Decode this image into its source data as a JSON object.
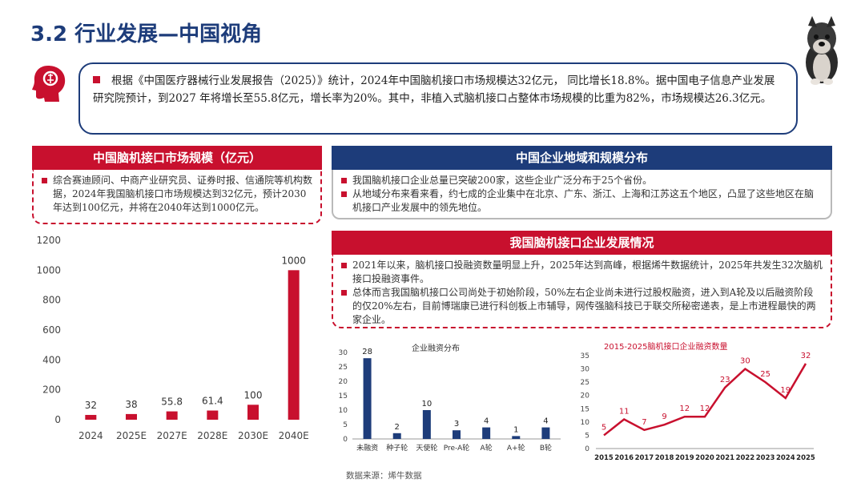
{
  "page": {
    "title": "3.2 行业发展—中国视角",
    "summary": "根据《中国医疗器械行业发展报告（2025）》统计，2024年中国脑机接口市场规模达32亿元， 同比增长18.8%。据中国电子信息产业发展研究院预计，到2027 年将增长至55.8亿元，增长率为20%。其中，非植入式脑机接口占整体市场规模的比重为82%，市场规模达26.3亿元。"
  },
  "sections": {
    "market_size": {
      "title": "中国脑机接口市场规模（亿元）",
      "items": [
        "综合赛迪顾问、中商产业研究员、证券时报、信通院等机构数据，2024年我国脑机接口市场规模达到32亿元，预计2030年达到100亿元，并将在2040年达到1000亿元。"
      ]
    },
    "region": {
      "title": "中国企业地域和规模分布",
      "items": [
        "我国脑机接口企业总量已突破200家，这些企业广泛分布于25个省份。",
        "从地域分布来看来看，约七成的企业集中在北京、广东、浙江、上海和江苏这五个地区，凸显了这些地区在脑机接口产业发展中的领先地位。"
      ]
    },
    "development": {
      "title": "我国脑机接口企业发展情况",
      "items": [
        "2021年以来，脑机接口投融资数量明显上升，2025年达到高峰，根据烯牛数据统计，2025年共发生32次脑机接口投融资事件。",
        "总体而言我国脑机接口公司尚处于初始阶段，50%左右企业尚未进行过股权融资，进入到A轮及以后融资阶段的仅20%左右，目前博瑞康已进行科创板上市辅导，网传强脑科技已于联交所秘密递表，是上市进程最快的两家企业。"
      ]
    }
  },
  "source": "数据来源：烯牛数据",
  "colors": {
    "red": "#c8102e",
    "blue": "#1d3c7a",
    "navy": "#1d3c7a"
  },
  "chart_data": [
    {
      "type": "bar",
      "title": "",
      "categories": [
        "2024",
        "2025E",
        "2027E",
        "2028E",
        "2030E",
        "2040E"
      ],
      "values": [
        32,
        38,
        55.8,
        61.4,
        100,
        1000
      ],
      "value_labels": [
        "32",
        "38",
        "55.8",
        "61.4",
        "100",
        "1000"
      ],
      "ylim": [
        0,
        1200
      ],
      "yticks": [
        0,
        200,
        400,
        600,
        800,
        1000,
        1200
      ],
      "color": "#c8102e"
    },
    {
      "type": "bar",
      "title": "企业融资分布",
      "categories": [
        "未融资",
        "种子轮",
        "天使轮",
        "Pre-A轮",
        "A轮",
        "A+轮",
        "B轮"
      ],
      "values": [
        28,
        2,
        10,
        3,
        4,
        1,
        4
      ],
      "ylim": [
        0,
        30
      ],
      "yticks": [
        0,
        5,
        10,
        15,
        20,
        25,
        30
      ],
      "color": "#1d3c7a"
    },
    {
      "type": "line",
      "title": "2015-2025脑机接口企业融资数量",
      "x": [
        "2015",
        "2016",
        "2017",
        "2018",
        "2019",
        "2020",
        "2021",
        "2022",
        "2023",
        "2024",
        "2025"
      ],
      "values": [
        5,
        11,
        7,
        9,
        12,
        12,
        23,
        30,
        25,
        19,
        32
      ],
      "ylim": [
        0,
        35
      ],
      "yticks": [
        0,
        5,
        10,
        15,
        20,
        25,
        30,
        35
      ],
      "color": "#c8102e"
    }
  ]
}
